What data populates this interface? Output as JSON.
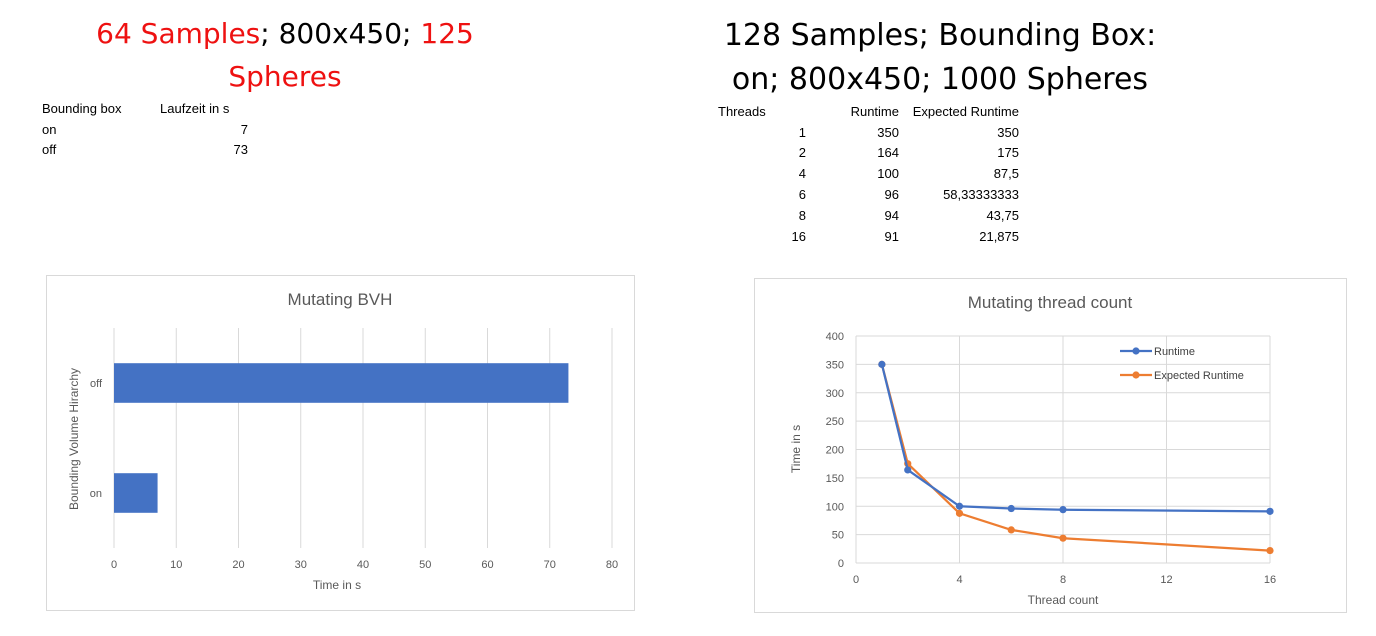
{
  "left_heading": {
    "samples": "64 Samples",
    "sep1": "; 800x450; ",
    "spheres_count": "125",
    "spheres_word": "Spheres"
  },
  "right_heading": {
    "line1": "128 Samples; Bounding Box:",
    "line2": "on; 800x450; 1000 Spheres"
  },
  "bvh_table": {
    "headers": [
      "Bounding box",
      "Laufzeit in s"
    ],
    "rows": [
      [
        "on",
        "7"
      ],
      [
        "off",
        "73"
      ]
    ]
  },
  "thread_table": {
    "headers": [
      "Threads",
      "Runtime",
      "Expected Runtime"
    ],
    "rows": [
      [
        "1",
        "350",
        "350"
      ],
      [
        "2",
        "164",
        "175"
      ],
      [
        "4",
        "100",
        "87,5"
      ],
      [
        "6",
        "96",
        "58,33333333"
      ],
      [
        "8",
        "94",
        "43,75"
      ],
      [
        "16",
        "91",
        "21,875"
      ]
    ]
  },
  "chart_data": [
    {
      "type": "bar",
      "orientation": "horizontal",
      "title": "Mutating BVH",
      "xlabel": "Time in s",
      "ylabel": "Bounding Volume Hirarchy",
      "categories": [
        "on",
        "off"
      ],
      "values": [
        7,
        73
      ],
      "xlim": [
        0,
        80
      ],
      "xticks": [
        0,
        10,
        20,
        30,
        40,
        50,
        60,
        70,
        80
      ],
      "grid": "vertical",
      "legend": "none",
      "color": "#4472c4"
    },
    {
      "type": "line",
      "title": "Mutating thread count",
      "xlabel": "Thread count",
      "ylabel": "Time in s",
      "x": [
        1,
        2,
        4,
        6,
        8,
        16
      ],
      "series": [
        {
          "name": "Runtime",
          "values": [
            350,
            164,
            100,
            96,
            94,
            91
          ],
          "color": "#4472c4"
        },
        {
          "name": "Expected Runtime",
          "values": [
            350,
            175,
            87.5,
            58.33333333,
            43.75,
            21.875
          ],
          "color": "#ed7d31"
        }
      ],
      "xlim": [
        0,
        16
      ],
      "xticks": [
        0,
        4,
        8,
        12,
        16
      ],
      "ylim": [
        0,
        400
      ],
      "yticks": [
        0,
        50,
        100,
        150,
        200,
        250,
        300,
        350,
        400
      ],
      "grid": "both",
      "legend": "top-right"
    }
  ]
}
